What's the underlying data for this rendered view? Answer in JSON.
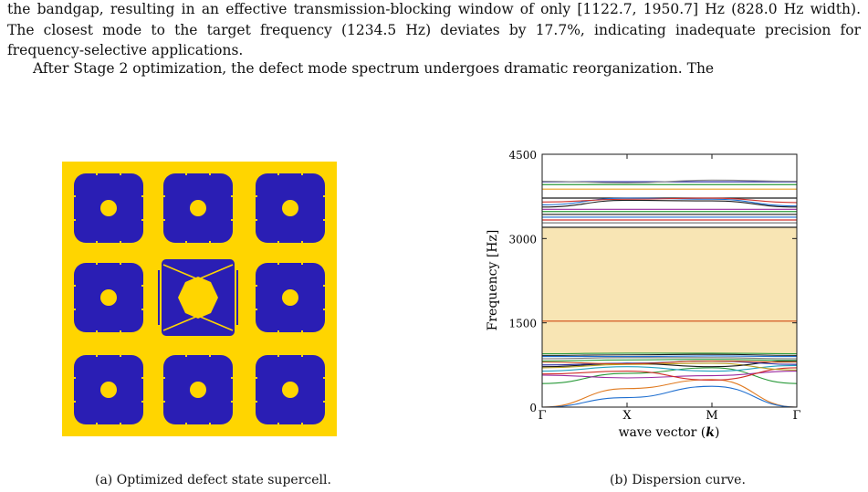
{
  "text": {
    "line1a": "the bandgap, resulting in an effective transmission-blocking window of only ",
    "interval": "[1122.7, 1950.7]",
    "line1b": " Hz (828.0 Hz width). The closest mode to the target frequency (1234.5 Hz) deviates by 17.7%, indicating inadequate precision for frequency-selective applications.",
    "line2": "After Stage 2 optimization, the defect mode spectrum undergoes dramatic reorganization. The"
  },
  "colors": {
    "solid": "#2a1eb4",
    "void": "#ffd500",
    "bandgap": "#f8e5b4"
  },
  "figA": {
    "caption": "(a) Optimized defect state supercell."
  },
  "figB": {
    "caption": "(b) Dispersion curve.",
    "chart_data": {
      "type": "line",
      "ylabel": "Frequency [Hz]",
      "xlabel_prefix": "wave vector (",
      "xlabel_symbol": "k",
      "xlabel_suffix": ")",
      "ylim": [
        0,
        4500
      ],
      "yticks": [
        "0",
        "1500",
        "3000",
        "4500"
      ],
      "yticks_values": [
        0,
        1500,
        3000,
        4500
      ],
      "x": [
        "Γ",
        "X",
        "M",
        "Γ"
      ],
      "bandgap": [
        960,
        3200
      ],
      "flat_bands": [
        {
          "value": 1530,
          "color": "#d04a14"
        },
        {
          "value": 3200,
          "color": "#222222"
        },
        {
          "value": 3280,
          "color": "#7a7a7a"
        },
        {
          "value": 3330,
          "color": "#d0302a"
        },
        {
          "value": 3380,
          "color": "#1f6fd0"
        },
        {
          "value": 3430,
          "color": "#333333"
        },
        {
          "value": 3480,
          "color": "#2a9a3a"
        },
        {
          "value": 3520,
          "color": "#9a2aa0"
        },
        {
          "value": 3720,
          "color": "#1a1a1a"
        },
        {
          "value": 3880,
          "color": "#e8a020"
        },
        {
          "value": 3960,
          "color": "#2a9a3a"
        },
        {
          "value": 4010,
          "color": "#2a2aa0"
        }
      ],
      "series": [
        {
          "values": [
            3560,
            3680,
            3670,
            3560
          ],
          "color": "#1a1a1a"
        },
        {
          "values": [
            3600,
            3720,
            3700,
            3580
          ],
          "color": "#1f6fd0"
        },
        {
          "values": [
            3650,
            3700,
            3720,
            3640
          ],
          "color": "#d0302a"
        },
        {
          "values": [
            4020,
            3990,
            4040,
            4020
          ],
          "color": "#8a8a8a"
        },
        {
          "values": [
            0,
            330,
            490,
            0
          ],
          "color": "#e07a20"
        },
        {
          "values": [
            0,
            170,
            370,
            0
          ],
          "color": "#1f6fd0"
        },
        {
          "values": [
            420,
            600,
            700,
            420
          ],
          "color": "#2a9a3a"
        },
        {
          "values": [
            570,
            520,
            560,
            640
          ],
          "color": "#9a2aa0"
        },
        {
          "values": [
            590,
            640,
            480,
            700
          ],
          "color": "#d0302a"
        },
        {
          "values": [
            640,
            720,
            640,
            740
          ],
          "color": "#20a0c0"
        },
        {
          "values": [
            700,
            760,
            780,
            660
          ],
          "color": "#b8a020"
        },
        {
          "values": [
            720,
            780,
            720,
            820
          ],
          "color": "#1a1a1a"
        },
        {
          "values": [
            750,
            780,
            820,
            760
          ],
          "color": "#2a2aa0"
        },
        {
          "values": [
            800,
            770,
            820,
            800
          ],
          "color": "#d04a14"
        },
        {
          "values": [
            820,
            840,
            850,
            830
          ],
          "color": "#2a9a3a"
        },
        {
          "values": [
            860,
            880,
            880,
            860
          ],
          "color": "#7a7a7a"
        },
        {
          "values": [
            900,
            900,
            910,
            900
          ],
          "color": "#1f6fd0"
        },
        {
          "values": [
            920,
            930,
            940,
            920
          ],
          "color": "#1a1a1a"
        },
        {
          "values": [
            950,
            960,
            960,
            950
          ],
          "color": "#2a9a3a"
        }
      ]
    }
  }
}
